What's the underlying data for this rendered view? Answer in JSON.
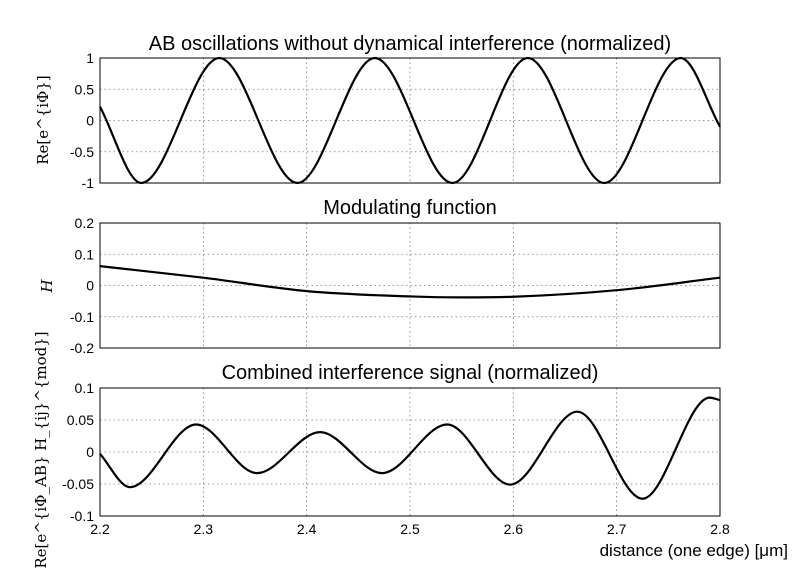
{
  "chart_data": [
    {
      "type": "line",
      "title": "AB oscillations without dynamical interference (normalized)",
      "ylabel": "Re[e^{iΦ}]",
      "xlim": [
        2.2,
        2.8
      ],
      "ylim": [
        -1,
        1
      ],
      "yticks": [
        "1",
        "0.5",
        "0",
        "-0.5",
        "-1"
      ],
      "grid": true,
      "series": [
        {
          "x": [
            2.2,
            2.24,
            2.3155,
            2.391,
            2.466,
            2.541,
            2.614,
            2.688,
            2.762,
            2.8
          ],
          "y": [
            0.22,
            -1,
            1,
            -1,
            1,
            -1,
            1,
            -1,
            1,
            -0.1
          ]
        }
      ]
    },
    {
      "type": "line",
      "title": "Modulating function",
      "ylabel": "H",
      "xlim": [
        2.2,
        2.8
      ],
      "ylim": [
        -0.2,
        0.2
      ],
      "yticks": [
        "0.2",
        "0.1",
        "0",
        "-0.1",
        "-0.2"
      ],
      "grid": true,
      "series": [
        {
          "x": [
            2.2,
            2.3,
            2.4,
            2.5,
            2.55,
            2.6,
            2.7,
            2.8
          ],
          "y": [
            0.062,
            0.025,
            -0.018,
            -0.035,
            -0.038,
            -0.036,
            -0.015,
            0.025
          ]
        }
      ]
    },
    {
      "type": "line",
      "title": "Combined interference signal (normalized)",
      "ylabel": "Re[e^{iΦ_AB} H_{ij}^{mod}]",
      "xlabel": "distance (one edge) [μm]",
      "xlim": [
        2.2,
        2.8
      ],
      "ylim": [
        -0.1,
        0.1
      ],
      "xticks": [
        "2.2",
        "2.3",
        "2.4",
        "2.5",
        "2.6",
        "2.7",
        "2.8"
      ],
      "yticks": [
        "0.1",
        "0.05",
        "0",
        "-0.05",
        "-0.1"
      ],
      "grid": true,
      "series": [
        {
          "x": [
            2.2,
            2.229,
            2.293,
            2.352,
            2.413,
            2.473,
            2.536,
            2.597,
            2.662,
            2.725,
            2.79,
            2.8
          ],
          "y": [
            -0.003,
            -0.055,
            0.043,
            -0.033,
            0.031,
            -0.033,
            0.043,
            -0.051,
            0.063,
            -0.073,
            0.085,
            0.081
          ]
        }
      ]
    }
  ]
}
